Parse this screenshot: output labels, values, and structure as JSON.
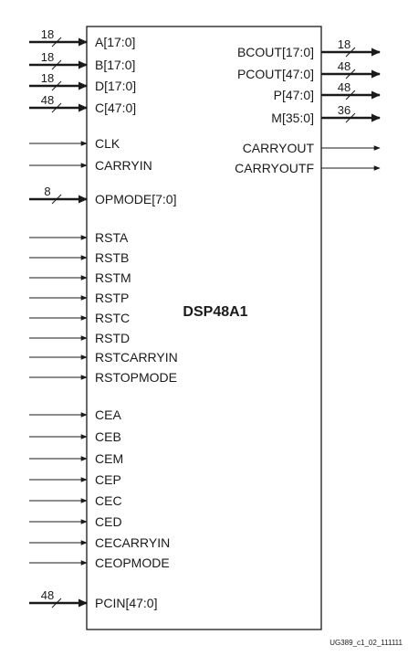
{
  "block_title": "DSP48A1",
  "figure_id": "UG389_c1_02_111111",
  "left_ports": [
    {
      "label": "A[17:0]",
      "width": "18",
      "bus": true
    },
    {
      "label": "B[17:0]",
      "width": "18",
      "bus": true
    },
    {
      "label": "D[17:0]",
      "width": "18",
      "bus": true
    },
    {
      "label": "C[47:0]",
      "width": "48",
      "bus": true
    },
    {
      "label": "CLK",
      "bus": false
    },
    {
      "label": "CARRYIN",
      "bus": false
    },
    {
      "label": "OPMODE[7:0]",
      "width": "8",
      "bus": true
    },
    {
      "label": "RSTA",
      "bus": false
    },
    {
      "label": "RSTB",
      "bus": false
    },
    {
      "label": "RSTM",
      "bus": false
    },
    {
      "label": "RSTP",
      "bus": false
    },
    {
      "label": "RSTC",
      "bus": false
    },
    {
      "label": "RSTD",
      "bus": false
    },
    {
      "label": "RSTCARRYIN",
      "bus": false
    },
    {
      "label": "RSTOPMODE",
      "bus": false
    },
    {
      "label": "CEA",
      "bus": false
    },
    {
      "label": "CEB",
      "bus": false
    },
    {
      "label": "CEM",
      "bus": false
    },
    {
      "label": "CEP",
      "bus": false
    },
    {
      "label": "CEC",
      "bus": false
    },
    {
      "label": "CED",
      "bus": false
    },
    {
      "label": "CECARRYIN",
      "bus": false
    },
    {
      "label": "CEOPMODE",
      "bus": false
    },
    {
      "label": "PCIN[47:0]",
      "width": "48",
      "bus": true
    }
  ],
  "right_ports": [
    {
      "label": "BCOUT[17:0]",
      "width": "18",
      "bus": true
    },
    {
      "label": "PCOUT[47:0]",
      "width": "48",
      "bus": true
    },
    {
      "label": "P[47:0]",
      "width": "48",
      "bus": true
    },
    {
      "label": "M[35:0]",
      "width": "36",
      "bus": true
    },
    {
      "label": "CARRYOUT",
      "bus": false
    },
    {
      "label": "CARRYOUTF",
      "bus": false
    }
  ]
}
